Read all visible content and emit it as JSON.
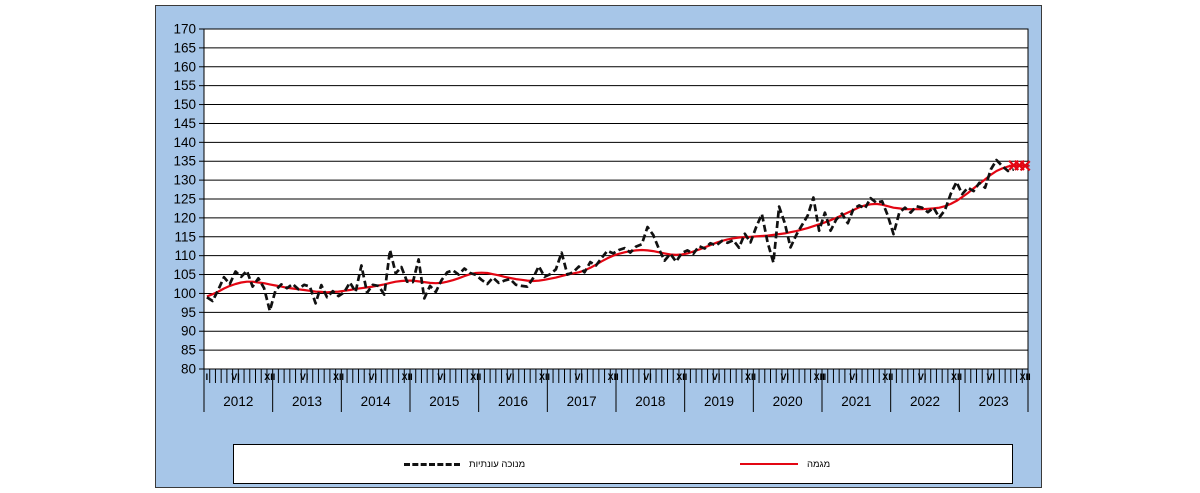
{
  "colors": {
    "panel_background": "#a7c6e8",
    "plot_background": "#ffffff",
    "gridline": "#000000",
    "seasonal_series": "#111111",
    "trend_series": "#e30613",
    "provisional_marker": "#e30613",
    "tick_text": "#000000"
  },
  "legend": {
    "seasonal_label": "מנוכה עונתיות",
    "trend_label": "מגמה"
  },
  "chart_data": {
    "type": "line",
    "title": "",
    "xlabel": "",
    "ylabel": "",
    "ylim": [
      80,
      170
    ],
    "y_ticks": [
      80,
      85,
      90,
      95,
      100,
      105,
      110,
      115,
      120,
      125,
      130,
      135,
      140,
      145,
      150,
      155,
      160,
      165,
      170
    ],
    "grid": "horizontal",
    "legend_position": "bottom",
    "x_years": [
      "2012",
      "2013",
      "2014",
      "2015",
      "2016",
      "2017",
      "2018",
      "2019",
      "2020",
      "2021",
      "2022",
      "2023"
    ],
    "months_per_year": 12,
    "month_tick_labels": [
      {
        "i": 0,
        "t": "I"
      },
      {
        "i": 5,
        "t": "VI"
      },
      {
        "i": 11,
        "t": "XII"
      },
      {
        "i": 17,
        "t": "VI"
      },
      {
        "i": 23,
        "t": "XII"
      },
      {
        "i": 29,
        "t": "VI"
      },
      {
        "i": 35,
        "t": "XII"
      },
      {
        "i": 41,
        "t": "VI"
      },
      {
        "i": 47,
        "t": "XII"
      },
      {
        "i": 53,
        "t": "VI"
      },
      {
        "i": 59,
        "t": "XII"
      },
      {
        "i": 65,
        "t": "VI"
      },
      {
        "i": 71,
        "t": "XII"
      },
      {
        "i": 77,
        "t": "VI"
      },
      {
        "i": 83,
        "t": "XII"
      },
      {
        "i": 89,
        "t": "VI"
      },
      {
        "i": 95,
        "t": "XII"
      },
      {
        "i": 101,
        "t": "VI"
      },
      {
        "i": 107,
        "t": "XII"
      },
      {
        "i": 108,
        "t": "I"
      },
      {
        "i": 113,
        "t": "VI"
      },
      {
        "i": 119,
        "t": "XII"
      },
      {
        "i": 125,
        "t": "VI"
      },
      {
        "i": 131,
        "t": "XII"
      },
      {
        "i": 137,
        "t": "VI"
      },
      {
        "i": 143,
        "t": "XII"
      }
    ],
    "series": [
      {
        "name": "מנוכה עונתיות",
        "style": "dashed-black",
        "values": [
          99.0,
          98.0,
          101.0,
          104.3,
          102.5,
          105.8,
          104.4,
          106.0,
          101.8,
          104.0,
          101.4,
          95.4,
          100.8,
          102.4,
          101.4,
          102.5,
          101.1,
          102.3,
          101.8,
          97.4,
          102.2,
          99.0,
          100.6,
          99.3,
          100.3,
          102.9,
          100.4,
          107.4,
          100.2,
          102.3,
          102.0,
          99.7,
          111.5,
          105.3,
          107.0,
          103.1,
          103.0,
          109.0,
          98.7,
          102.0,
          100.4,
          103.5,
          105.6,
          106.1,
          105.0,
          106.6,
          105.4,
          104.9,
          103.6,
          102.5,
          104.2,
          102.8,
          103.4,
          103.8,
          102.3,
          102.0,
          101.8,
          104.0,
          107.2,
          104.4,
          105.1,
          106.4,
          110.8,
          105.0,
          105.6,
          107.1,
          105.6,
          108.3,
          107.4,
          109.4,
          111.3,
          110.6,
          111.5,
          112.0,
          110.8,
          112.4,
          113.0,
          117.6,
          115.5,
          111.8,
          108.7,
          110.5,
          108.4,
          110.7,
          111.4,
          110.5,
          112.5,
          111.9,
          113.3,
          112.7,
          113.9,
          113.4,
          114.1,
          112.1,
          115.8,
          113.5,
          117.6,
          121.0,
          113.5,
          108.2,
          123.0,
          118.6,
          112.2,
          115.5,
          118.1,
          120.6,
          125.4,
          116.6,
          121.4,
          116.6,
          119.6,
          121.1,
          118.6,
          122.4,
          123.3,
          122.5,
          125.2,
          124.0,
          124.4,
          120.6,
          115.7,
          121.4,
          122.7,
          121.4,
          123.1,
          122.7,
          121.5,
          122.7,
          120.1,
          122.1,
          126.4,
          129.5,
          126.3,
          128.0,
          127.1,
          129.3,
          128.0,
          132.8,
          135.3,
          133.7,
          132.4,
          132.8,
          null,
          null
        ]
      },
      {
        "name": "מגמה",
        "style": "solid-red",
        "values": [
          99.2,
          99.8,
          100.5,
          101.3,
          102.0,
          102.5,
          102.9,
          103.1,
          103.1,
          102.9,
          102.7,
          102.4,
          102.1,
          101.8,
          101.5,
          101.3,
          101.1,
          100.9,
          100.7,
          100.5,
          100.4,
          100.3,
          100.4,
          100.5,
          100.7,
          100.9,
          101.2,
          101.4,
          101.6,
          101.8,
          102.1,
          102.4,
          102.8,
          103.1,
          103.3,
          103.4,
          103.4,
          103.2,
          103.0,
          102.8,
          102.7,
          102.8,
          103.1,
          103.5,
          104.0,
          104.6,
          105.1,
          105.4,
          105.5,
          105.4,
          105.1,
          104.8,
          104.4,
          104.1,
          103.8,
          103.6,
          103.4,
          103.3,
          103.4,
          103.6,
          103.9,
          104.2,
          104.6,
          105.0,
          105.3,
          105.6,
          106.1,
          106.8,
          107.6,
          108.5,
          109.3,
          110.0,
          110.5,
          110.9,
          111.2,
          111.4,
          111.5,
          111.4,
          111.2,
          110.9,
          110.6,
          110.3,
          110.2,
          110.3,
          110.6,
          111.1,
          111.6,
          112.2,
          112.8,
          113.4,
          113.9,
          114.3,
          114.6,
          114.8,
          114.9,
          115.0,
          115.1,
          115.2,
          115.3,
          115.5,
          115.7,
          115.9,
          116.2,
          116.5,
          116.9,
          117.3,
          117.8,
          118.3,
          118.8,
          119.4,
          120.0,
          120.7,
          121.4,
          122.1,
          122.8,
          123.3,
          123.6,
          123.7,
          123.5,
          123.1,
          122.7,
          122.5,
          122.3,
          122.3,
          122.3,
          122.3,
          122.4,
          122.5,
          122.7,
          123.1,
          123.7,
          124.5,
          125.5,
          126.6,
          127.8,
          129.0,
          130.2,
          131.4,
          132.4,
          133.1,
          133.6,
          133.9,
          133.9,
          133.8
        ]
      }
    ],
    "provisional_marker_indices": [
      141,
      142,
      143
    ]
  }
}
